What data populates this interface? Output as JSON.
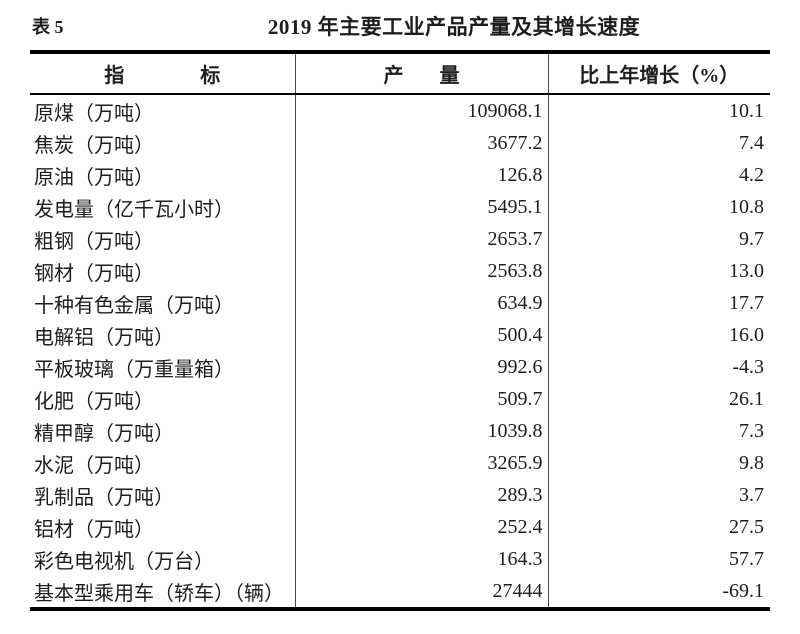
{
  "caption": {
    "table_label": "表 5",
    "title": "2019 年主要工业产品产量及其增长速度"
  },
  "table": {
    "headers": {
      "indicator": [
        "指",
        "标"
      ],
      "output": [
        "产",
        "量"
      ],
      "growth": "比上年增长（%）"
    },
    "rows": [
      {
        "label": "原煤（万吨）",
        "output": "109068.1",
        "growth": "10.1"
      },
      {
        "label": "焦炭（万吨）",
        "output": "3677.2",
        "growth": "7.4"
      },
      {
        "label": "原油（万吨）",
        "output": "126.8",
        "growth": "4.2"
      },
      {
        "label": "发电量（亿千瓦小时）",
        "output": "5495.1",
        "growth": "10.8"
      },
      {
        "label": "粗钢（万吨）",
        "output": "2653.7",
        "growth": "9.7"
      },
      {
        "label": "钢材（万吨）",
        "output": "2563.8",
        "growth": "13.0"
      },
      {
        "label": "十种有色金属（万吨）",
        "output": "634.9",
        "growth": "17.7"
      },
      {
        "label": "电解铝（万吨）",
        "output": "500.4",
        "growth": "16.0"
      },
      {
        "label": "平板玻璃（万重量箱）",
        "output": "992.6",
        "growth": "-4.3"
      },
      {
        "label": "化肥（万吨）",
        "output": "509.7",
        "growth": "26.1"
      },
      {
        "label": "精甲醇（万吨）",
        "output": "1039.8",
        "growth": "7.3"
      },
      {
        "label": "水泥（万吨）",
        "output": "3265.9",
        "growth": "9.8"
      },
      {
        "label": "乳制品（万吨）",
        "output": "289.3",
        "growth": "3.7"
      },
      {
        "label": "铝材（万吨）",
        "output": "252.4",
        "growth": "27.5"
      },
      {
        "label": "彩色电视机（万台）",
        "output": "164.3",
        "growth": "57.7"
      },
      {
        "label": "基本型乘用车（轿车）（辆）",
        "output": "27444",
        "growth": "-69.1"
      }
    ]
  },
  "colors": {
    "text": "#1e1e1e",
    "border_heavy": "#000000",
    "border_light": "#4a4a4a",
    "background": "#ffffff"
  }
}
